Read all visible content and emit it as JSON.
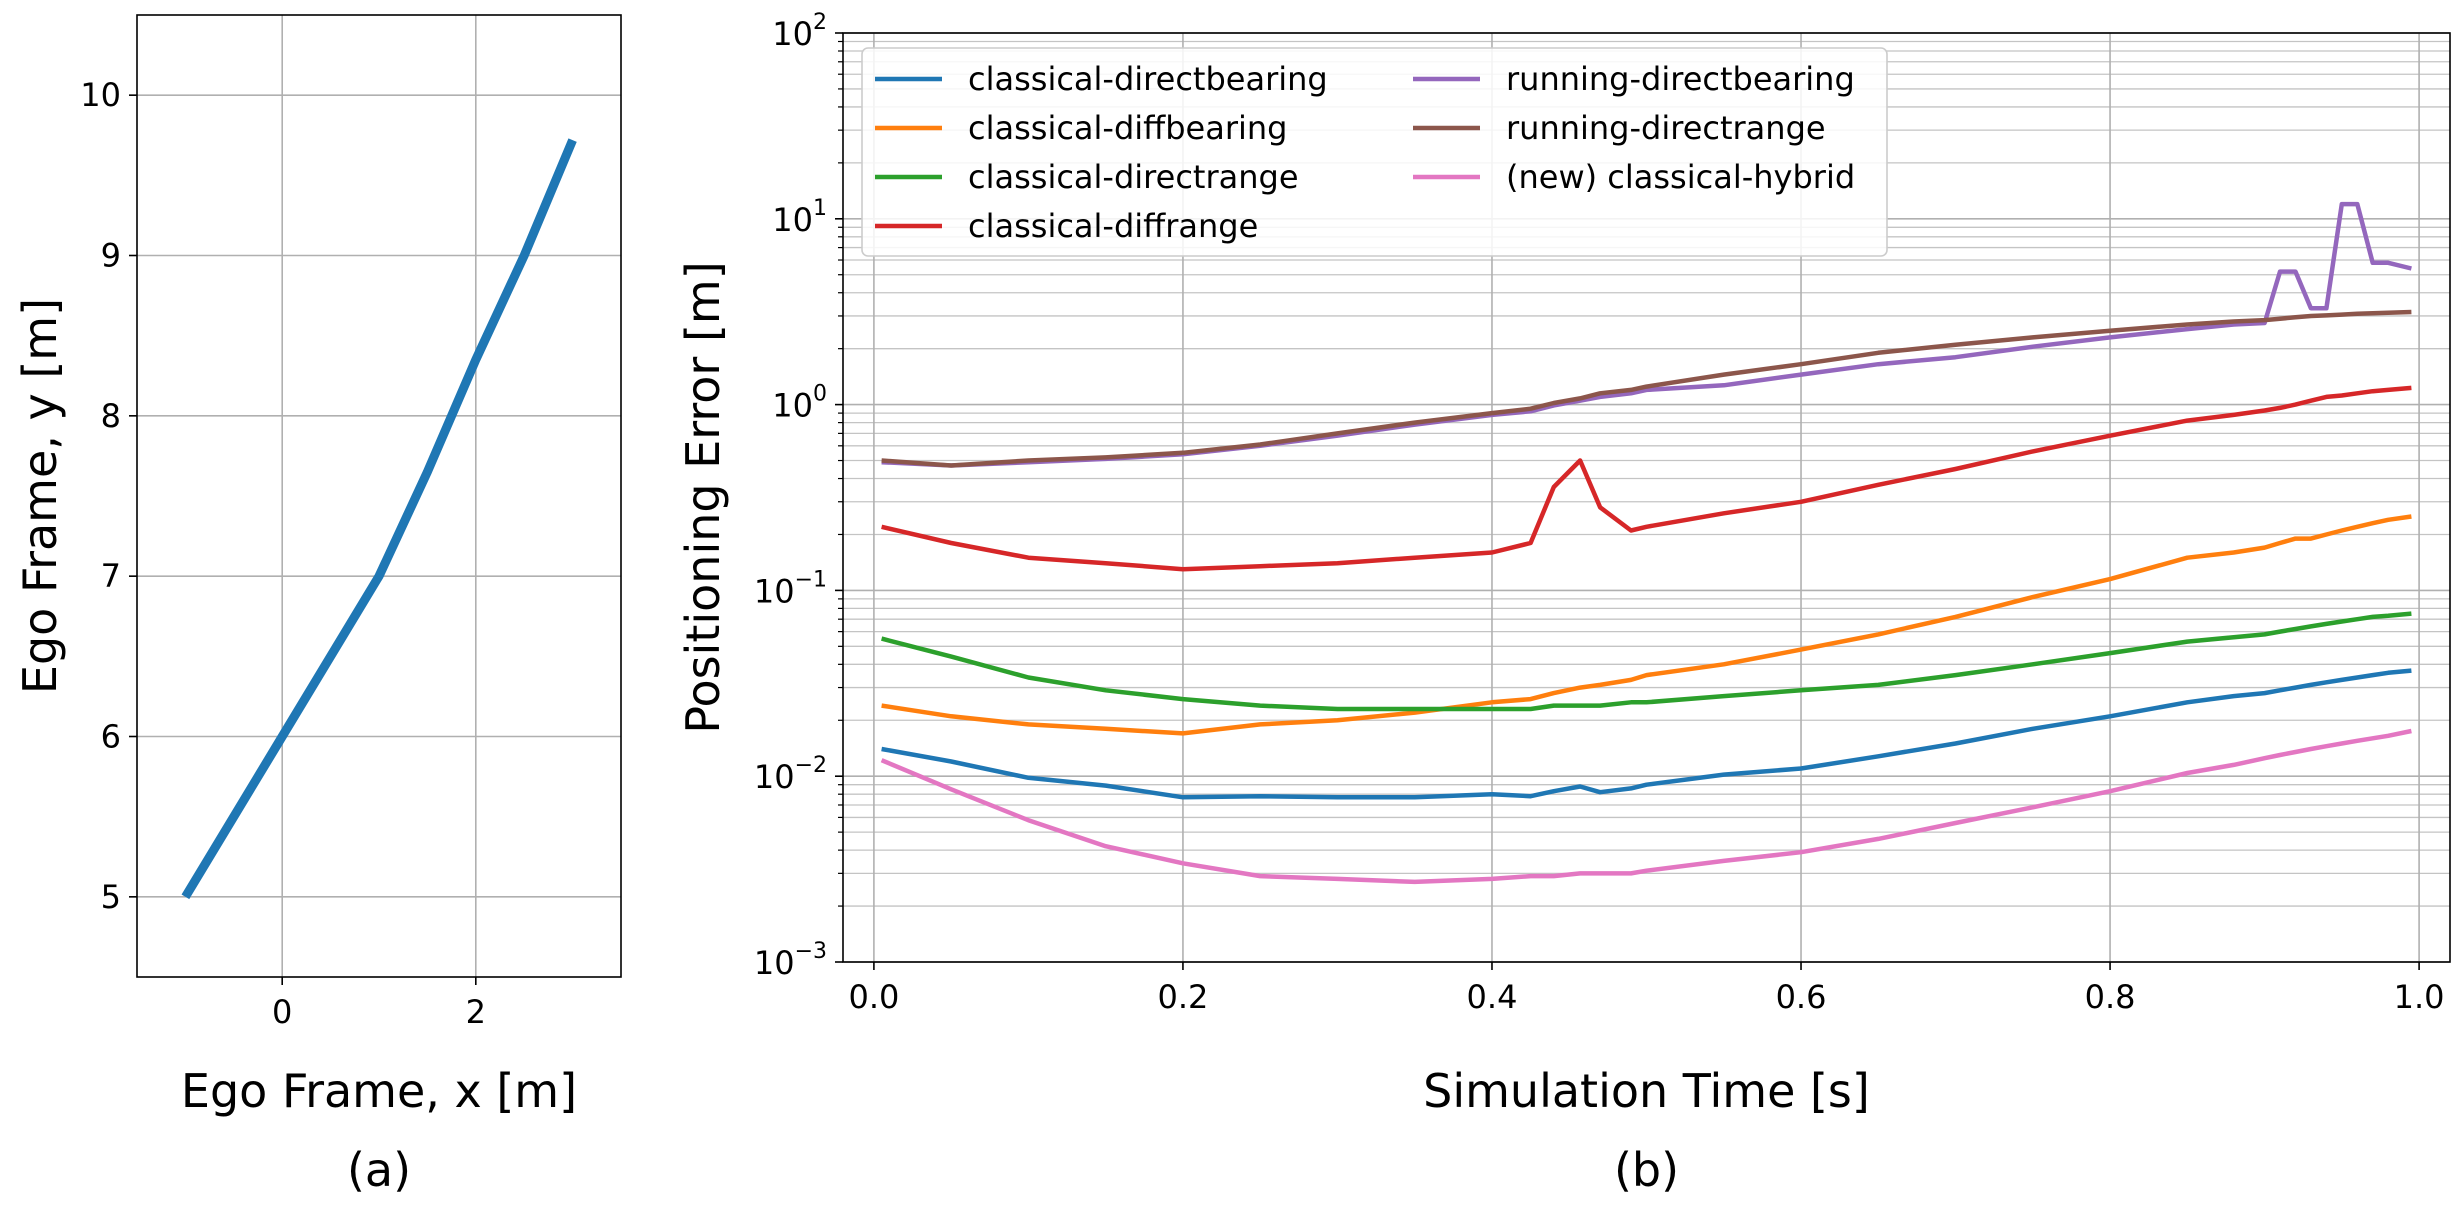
{
  "chart_data": [
    {
      "type": "line",
      "panel_label": "(a)",
      "xlabel": "Ego Frame, x [m]",
      "ylabel": "Ego Frame, y [m]",
      "xlim": [
        -1.5,
        3.5
      ],
      "ylim": [
        4.5,
        10.5
      ],
      "xticks": [
        0,
        2
      ],
      "xtick_labels": [
        "0",
        "2"
      ],
      "yticks": [
        5,
        6,
        7,
        8,
        9,
        10
      ],
      "ytick_labels": [
        "5",
        "6",
        "7",
        "8",
        "9",
        "10"
      ],
      "grid": true,
      "series": [
        {
          "color": "#1f77b4",
          "x": [
            -1.0,
            0.0,
            1.0,
            1.5,
            2.0,
            2.5,
            3.0
          ],
          "y": [
            5.0,
            6.0,
            7.0,
            7.65,
            8.35,
            9.0,
            9.72
          ]
        }
      ]
    },
    {
      "type": "line",
      "panel_label": "(b)",
      "xlabel": "Simulation Time [s]",
      "ylabel": "Positioning Error [m]",
      "xlim": [
        -0.02,
        1.02
      ],
      "ylim": [
        0.001,
        100
      ],
      "yscale": "log",
      "xticks": [
        0.0,
        0.2,
        0.4,
        0.6,
        0.8,
        1.0
      ],
      "xtick_labels": [
        "0.0",
        "0.2",
        "0.4",
        "0.6",
        "0.8",
        "1.0"
      ],
      "yticks": [
        0.001,
        0.01,
        0.1,
        1,
        10,
        100
      ],
      "ytick_labels": [
        {
          "base": "10",
          "exp": "−3"
        },
        {
          "base": "10",
          "exp": "−2"
        },
        {
          "base": "10",
          "exp": "−1"
        },
        {
          "base": "10",
          "exp": "0"
        },
        {
          "base": "10",
          "exp": "1"
        },
        {
          "base": "10",
          "exp": "2"
        }
      ],
      "grid": true,
      "legend_position": "top-left",
      "legend_columns": 2,
      "x": [
        0.005,
        0.05,
        0.1,
        0.15,
        0.2,
        0.25,
        0.3,
        0.35,
        0.4,
        0.425,
        0.44,
        0.457,
        0.47,
        0.49,
        0.5,
        0.55,
        0.6,
        0.65,
        0.7,
        0.75,
        0.8,
        0.85,
        0.88,
        0.9,
        0.91,
        0.92,
        0.93,
        0.94,
        0.95,
        0.96,
        0.97,
        0.98,
        0.995
      ],
      "series": [
        {
          "name": "classical-directbearing",
          "color": "#1f77b4",
          "values": [
            0.014,
            0.012,
            0.0098,
            0.0089,
            0.0077,
            0.0078,
            0.0077,
            0.0077,
            0.008,
            0.0078,
            0.0083,
            0.0088,
            0.0082,
            0.0086,
            0.009,
            0.0102,
            0.011,
            0.0128,
            0.015,
            0.018,
            0.021,
            0.025,
            0.027,
            0.028,
            0.029,
            0.03,
            0.031,
            0.032,
            0.033,
            0.034,
            0.035,
            0.036,
            0.037
          ]
        },
        {
          "name": "classical-diffbearing",
          "color": "#ff7f0e",
          "values": [
            0.024,
            0.021,
            0.019,
            0.018,
            0.017,
            0.019,
            0.02,
            0.022,
            0.025,
            0.026,
            0.028,
            0.03,
            0.031,
            0.033,
            0.035,
            0.04,
            0.048,
            0.058,
            0.072,
            0.092,
            0.115,
            0.15,
            0.16,
            0.17,
            0.18,
            0.19,
            0.19,
            0.2,
            0.21,
            0.22,
            0.23,
            0.24,
            0.25
          ]
        },
        {
          "name": "classical-directrange",
          "color": "#2ca02c",
          "values": [
            0.055,
            0.044,
            0.034,
            0.029,
            0.026,
            0.024,
            0.023,
            0.023,
            0.023,
            0.023,
            0.024,
            0.024,
            0.024,
            0.025,
            0.025,
            0.027,
            0.029,
            0.031,
            0.035,
            0.04,
            0.046,
            0.053,
            0.056,
            0.058,
            0.06,
            0.062,
            0.064,
            0.066,
            0.068,
            0.07,
            0.072,
            0.073,
            0.075
          ]
        },
        {
          "name": "classical-diffrange",
          "color": "#d62728",
          "values": [
            0.22,
            0.18,
            0.15,
            0.14,
            0.13,
            0.135,
            0.14,
            0.15,
            0.16,
            0.18,
            0.36,
            0.5,
            0.28,
            0.21,
            0.22,
            0.26,
            0.3,
            0.37,
            0.45,
            0.56,
            0.68,
            0.82,
            0.88,
            0.93,
            0.96,
            1.0,
            1.05,
            1.1,
            1.12,
            1.15,
            1.18,
            1.2,
            1.23
          ]
        },
        {
          "name": "running-directbearing",
          "color": "#9467bd",
          "values": [
            0.49,
            0.47,
            0.49,
            0.51,
            0.54,
            0.6,
            0.68,
            0.78,
            0.88,
            0.92,
            0.99,
            1.05,
            1.1,
            1.15,
            1.2,
            1.27,
            1.45,
            1.65,
            1.8,
            2.05,
            2.3,
            2.55,
            2.7,
            2.75,
            5.2,
            5.2,
            3.3,
            3.3,
            12.0,
            12.0,
            5.8,
            5.8,
            5.4
          ]
        },
        {
          "name": "running-directrange",
          "color": "#8c564b",
          "values": [
            0.5,
            0.47,
            0.5,
            0.52,
            0.55,
            0.61,
            0.7,
            0.8,
            0.9,
            0.95,
            1.02,
            1.08,
            1.15,
            1.2,
            1.25,
            1.45,
            1.65,
            1.9,
            2.1,
            2.3,
            2.5,
            2.7,
            2.8,
            2.85,
            2.9,
            2.95,
            3.0,
            3.02,
            3.05,
            3.08,
            3.1,
            3.12,
            3.15
          ]
        },
        {
          "name": "(new) classical-hybrid",
          "color": "#e377c2",
          "values": [
            0.0122,
            0.0085,
            0.0058,
            0.0042,
            0.0034,
            0.0029,
            0.0028,
            0.0027,
            0.0028,
            0.0029,
            0.0029,
            0.003,
            0.003,
            0.003,
            0.0031,
            0.0035,
            0.0039,
            0.0046,
            0.0056,
            0.0068,
            0.0083,
            0.0104,
            0.0115,
            0.0125,
            0.013,
            0.0135,
            0.014,
            0.0145,
            0.015,
            0.0155,
            0.016,
            0.0165,
            0.0175
          ]
        }
      ]
    }
  ]
}
